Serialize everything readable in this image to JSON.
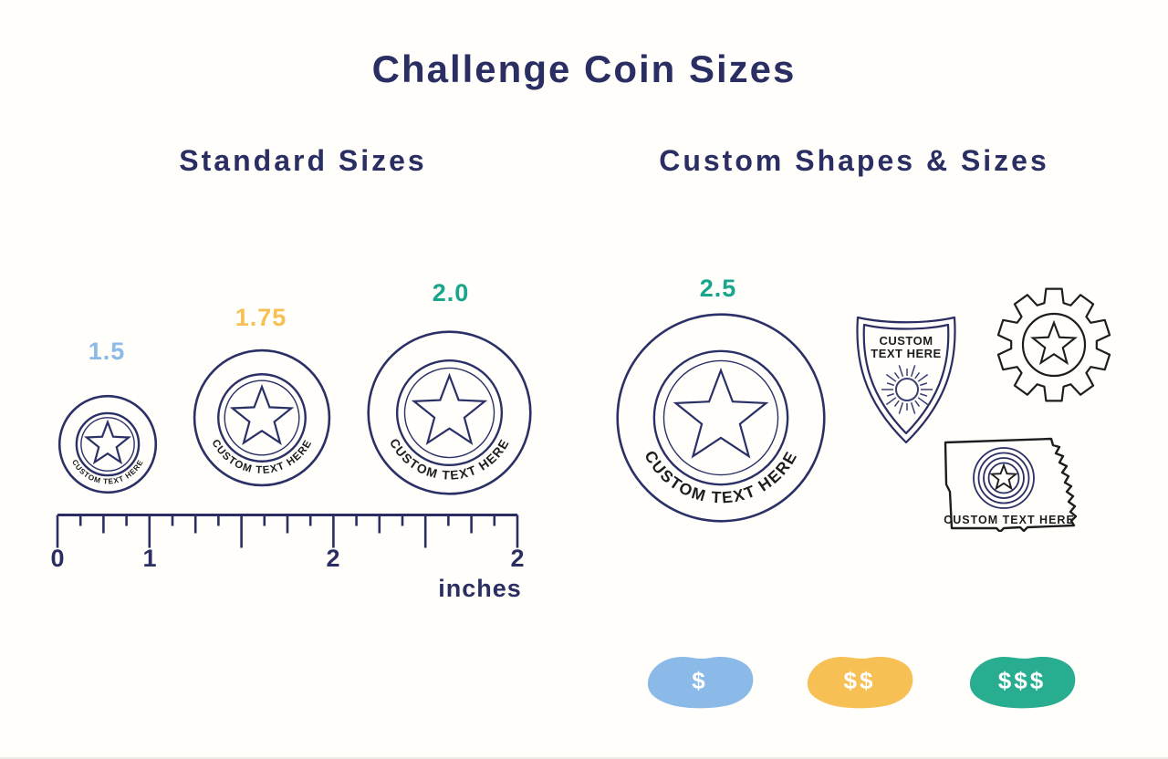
{
  "title": "Challenge Coin Sizes",
  "sections": {
    "standard": {
      "heading": "Standard Sizes"
    },
    "custom": {
      "heading": "Custom Shapes & Sizes"
    }
  },
  "coins": {
    "size_1_5": {
      "label": "1.5",
      "diameter_inches": 1.5,
      "engraving": "CUSTOM TEXT HERE",
      "label_color": "#8cbae8"
    },
    "size_1_75": {
      "label": "1.75",
      "diameter_inches": 1.75,
      "engraving": "CUSTOM TEXT HERE",
      "label_color": "#f6c055"
    },
    "size_2_0": {
      "label": "2.0",
      "diameter_inches": 2.0,
      "engraving": "CUSTOM TEXT HERE",
      "label_color": "#18a58c"
    },
    "size_2_5": {
      "label": "2.5",
      "diameter_inches": 2.5,
      "engraving": "CUSTOM TEXT HERE",
      "label_color": "#18a58c"
    }
  },
  "ruler": {
    "tick_labels": [
      "0",
      "1",
      "2",
      "2"
    ],
    "unit_label": "inches"
  },
  "custom_shapes": {
    "shield": {
      "text_line_1": "CUSTOM",
      "text_line_2": "TEXT HERE"
    },
    "state": {
      "engraving": "CUSTOM TEXT HERE"
    }
  },
  "pricing_tiers": [
    {
      "label": "$",
      "color": "#8cbae8"
    },
    {
      "label": "$$",
      "color": "#f6c055"
    },
    {
      "label": "$$$",
      "color": "#28ad90"
    }
  ],
  "colors": {
    "navy": "#2a2e62",
    "ink": "#1d1d1f",
    "light_blue": "#8cbae8",
    "yellow": "#f6c055",
    "teal": "#18a58c",
    "badge_teal": "#28ad90"
  }
}
